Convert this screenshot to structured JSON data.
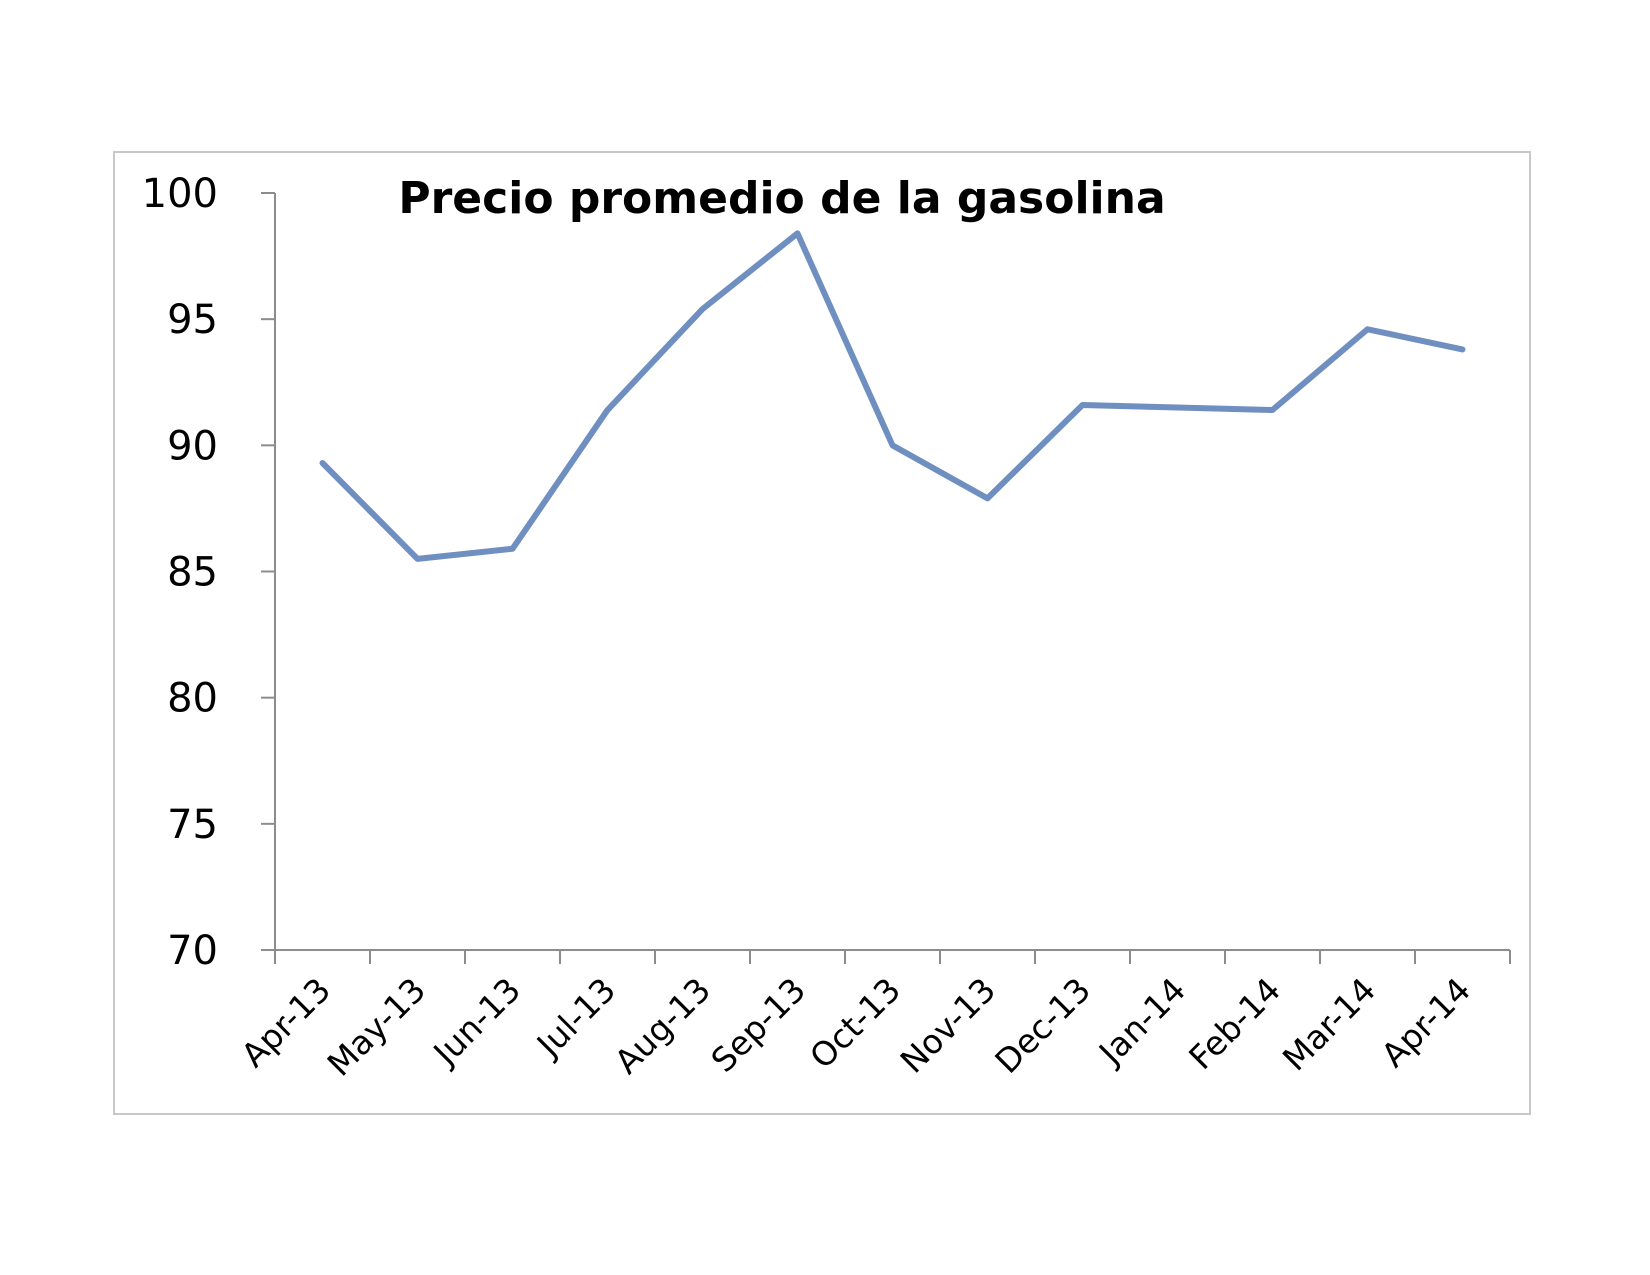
{
  "chart_data": {
    "type": "line",
    "title": "Precio promedio de la gasolina",
    "xlabel": "",
    "ylabel": "",
    "categories": [
      "Apr-13",
      "May-13",
      "Jun-13",
      "Jul-13",
      "Aug-13",
      "Sep-13",
      "Oct-13",
      "Nov-13",
      "Dec-13",
      "Jan-14",
      "Feb-14",
      "Mar-14",
      "Apr-14"
    ],
    "series": [
      {
        "values": [
          89.3,
          85.5,
          85.9,
          91.4,
          95.4,
          98.4,
          90.0,
          87.9,
          91.6,
          91.5,
          91.4,
          94.6,
          93.8
        ],
        "color": "#6f8fc0"
      }
    ],
    "ylim": [
      70,
      100
    ],
    "yticks": [
      100,
      95,
      90,
      85,
      80,
      75,
      70
    ],
    "grid": false,
    "legend": "none"
  }
}
